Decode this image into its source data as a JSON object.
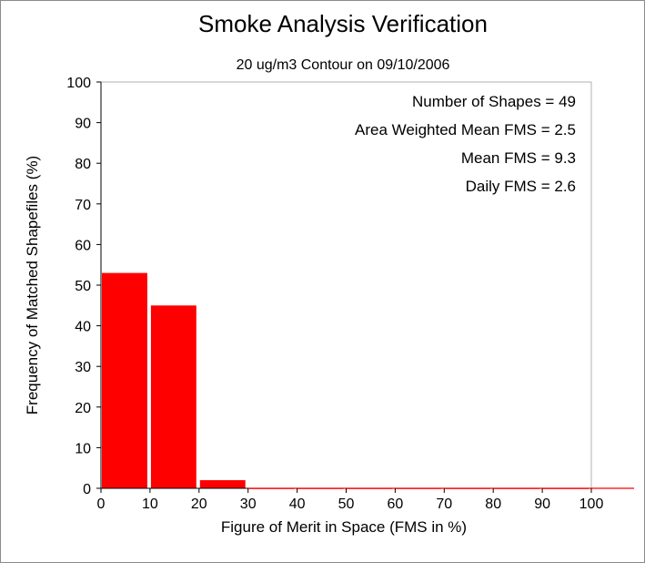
{
  "chart_data": {
    "type": "bar",
    "title": "Smoke Analysis Verification",
    "subtitle": "20 ug/m3 Contour on 09/10/2006",
    "xlabel": "Figure of Merit in Space (FMS in %)",
    "ylabel": "Frequency of Matched Shapefiles (%)",
    "xlim": [
      0,
      100
    ],
    "ylim": [
      0,
      100
    ],
    "xticks": [
      0,
      10,
      20,
      30,
      40,
      50,
      60,
      70,
      80,
      90,
      100
    ],
    "yticks": [
      0,
      10,
      20,
      30,
      40,
      50,
      60,
      70,
      80,
      90,
      100
    ],
    "bins": [
      {
        "start": 0,
        "end": 10,
        "value": 53
      },
      {
        "start": 10,
        "end": 20,
        "value": 45
      },
      {
        "start": 20,
        "end": 30,
        "value": 2
      },
      {
        "start": 30,
        "end": 40,
        "value": 0
      },
      {
        "start": 40,
        "end": 50,
        "value": 0
      },
      {
        "start": 50,
        "end": 60,
        "value": 0
      },
      {
        "start": 60,
        "end": 70,
        "value": 0
      },
      {
        "start": 70,
        "end": 80,
        "value": 0
      },
      {
        "start": 80,
        "end": 90,
        "value": 0
      },
      {
        "start": 90,
        "end": 100,
        "value": 0
      }
    ],
    "bar_color": "#ff0000",
    "grid": false,
    "annotations": [
      "Number of Shapes = 49",
      "Area Weighted Mean FMS = 2.5",
      "Mean FMS = 9.3",
      "Daily FMS = 2.6"
    ]
  }
}
